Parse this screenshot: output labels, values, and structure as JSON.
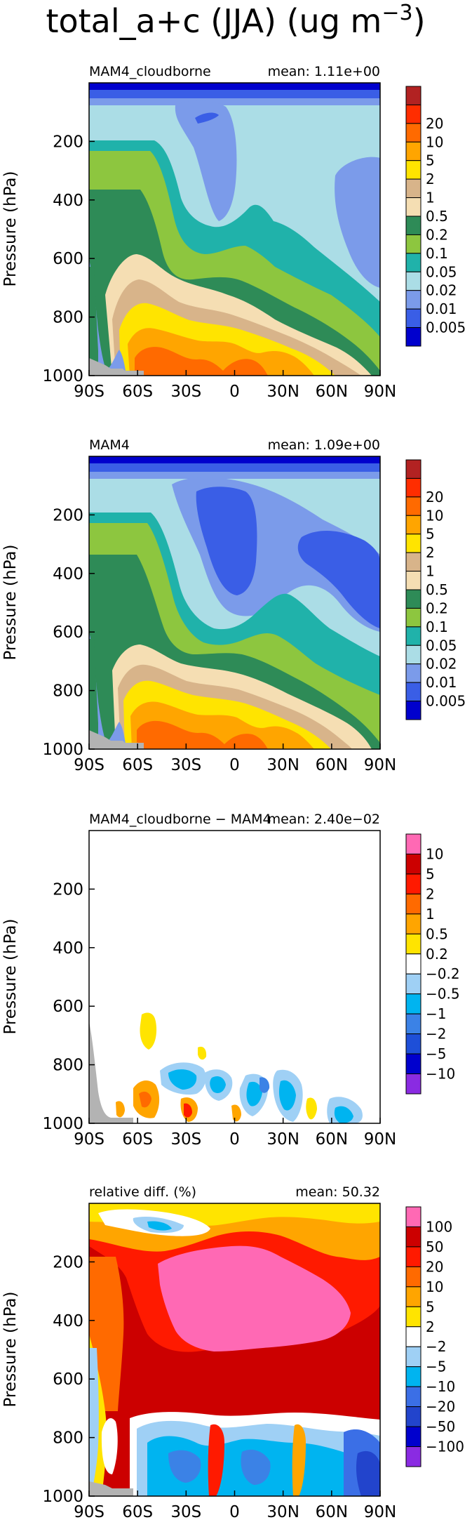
{
  "figure_title": "total_a+c (JJA) (ug m",
  "figure_title_sup": "−3",
  "figure_title_end": ")",
  "chart_data": [
    {
      "type": "heatmap",
      "panel_label": "MAM4_cloudborne",
      "mean_label": "mean: 1.11e+00",
      "ylabel": "Pressure (hPa)",
      "x_ticks": [
        "90S",
        "60S",
        "30S",
        "0",
        "30N",
        "60N",
        "90N"
      ],
      "y_ticks": [
        "200",
        "400",
        "600",
        "800",
        "1000"
      ],
      "ylim": [
        1000,
        0
      ],
      "levels": [
        "0.005",
        "0.01",
        "0.02",
        "0.05",
        "0.1",
        "0.2",
        "0.5",
        "1",
        "2",
        "5",
        "10",
        "20"
      ],
      "colors": [
        "#0000cd",
        "#3a5ee6",
        "#7b9bea",
        "#abdde6",
        "#20b2aa",
        "#8dc63f",
        "#2e8b57",
        "#f5deb3",
        "#d8b48a",
        "#ffe400",
        "#ffa500",
        "#ff6a00",
        "#ff2d00",
        "#b22222"
      ],
      "min_color": "#0000cd",
      "max_color": "#b22222"
    },
    {
      "type": "heatmap",
      "panel_label": "MAM4",
      "mean_label": "mean: 1.09e+00",
      "ylabel": "Pressure (hPa)",
      "x_ticks": [
        "90S",
        "60S",
        "30S",
        "0",
        "30N",
        "60N",
        "90N"
      ],
      "y_ticks": [
        "200",
        "400",
        "600",
        "800",
        "1000"
      ],
      "ylim": [
        1000,
        0
      ],
      "levels": [
        "0.005",
        "0.01",
        "0.02",
        "0.05",
        "0.1",
        "0.2",
        "0.5",
        "1",
        "2",
        "5",
        "10",
        "20"
      ]
    },
    {
      "type": "heatmap",
      "panel_label": "MAM4_cloudborne − MAM4",
      "mean_label": "mean: 2.40e−02",
      "ylabel": "Pressure (hPa)",
      "x_ticks": [
        "90S",
        "60S",
        "30S",
        "0",
        "30N",
        "60N",
        "90N"
      ],
      "y_ticks": [
        "200",
        "400",
        "600",
        "800",
        "1000"
      ],
      "ylim": [
        1000,
        0
      ],
      "levels": [
        "-10",
        "-5",
        "-2",
        "-1",
        "-0.5",
        "-0.2",
        "0.2",
        "0.5",
        "1",
        "2",
        "5",
        "10"
      ],
      "colors": [
        "#8a2be2",
        "#0000cd",
        "#1e4fd8",
        "#3b82e6",
        "#00b4f0",
        "#9fd0f5",
        "#ffffff",
        "#ffe400",
        "#ffa500",
        "#ff6a00",
        "#ff1a00",
        "#cc0000",
        "#ff69b4"
      ],
      "min_color": "#8a2be2",
      "max_color": "#ff69b4"
    },
    {
      "type": "heatmap",
      "panel_label": "relative diff. (%)",
      "mean_label": "mean: 50.32",
      "ylabel": "Pressure (hPa)",
      "x_ticks": [
        "90S",
        "60S",
        "30S",
        "0",
        "30N",
        "60N",
        "90N"
      ],
      "y_ticks": [
        "200",
        "400",
        "600",
        "800",
        "1000"
      ],
      "ylim": [
        1000,
        0
      ],
      "levels": [
        "-100",
        "-50",
        "-20",
        "-10",
        "-5",
        "-2",
        "2",
        "5",
        "10",
        "20",
        "50",
        "100"
      ],
      "colors": [
        "#8a2be2",
        "#0000cd",
        "#2244cc",
        "#3b6fe6",
        "#00b4f0",
        "#9fd0f5",
        "#ffffff",
        "#ffe400",
        "#ffa500",
        "#ff6a00",
        "#ff1a00",
        "#cc0000",
        "#ff69b4"
      ],
      "min_color": "#8a2be2",
      "max_color": "#ff69b4"
    }
  ]
}
